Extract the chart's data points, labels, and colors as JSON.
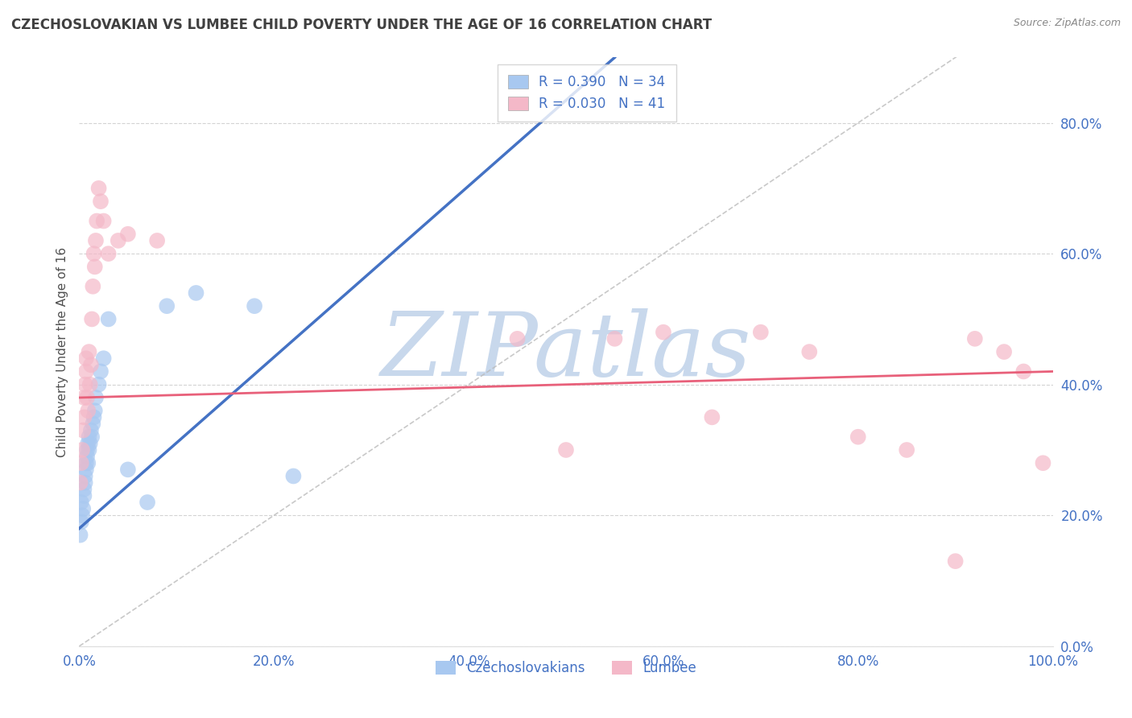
{
  "title": "CZECHOSLOVAKIAN VS LUMBEE CHILD POVERTY UNDER THE AGE OF 16 CORRELATION CHART",
  "source": "Source: ZipAtlas.com",
  "ylabel": "Child Poverty Under the Age of 16",
  "legend_labels": [
    "Czechoslovakians",
    "Lumbee"
  ],
  "legend_r": [
    "R = 0.390",
    "R = 0.030"
  ],
  "legend_n": [
    "N = 34",
    "N = 41"
  ],
  "blue_color": "#A8C8F0",
  "pink_color": "#F4B8C8",
  "blue_line_color": "#4472C4",
  "pink_line_color": "#E8607A",
  "watermark": "ZIPatlas",
  "watermark_color": "#C8D8EC",
  "background_color": "#FFFFFF",
  "grid_color": "#C8C8C8",
  "title_color": "#404040",
  "axis_label_color": "#505050",
  "tick_color": "#4472C4",
  "xlim": [
    0.0,
    1.0
  ],
  "ylim": [
    0.0,
    0.9
  ],
  "czech_x": [
    0.001,
    0.002,
    0.002,
    0.003,
    0.004,
    0.005,
    0.005,
    0.006,
    0.006,
    0.007,
    0.007,
    0.008,
    0.008,
    0.009,
    0.009,
    0.01,
    0.01,
    0.011,
    0.012,
    0.013,
    0.014,
    0.015,
    0.016,
    0.017,
    0.02,
    0.022,
    0.025,
    0.03,
    0.05,
    0.07,
    0.09,
    0.12,
    0.18,
    0.22
  ],
  "czech_y": [
    0.17,
    0.19,
    0.22,
    0.2,
    0.21,
    0.23,
    0.24,
    0.25,
    0.26,
    0.27,
    0.28,
    0.29,
    0.3,
    0.28,
    0.31,
    0.3,
    0.32,
    0.31,
    0.33,
    0.32,
    0.34,
    0.35,
    0.36,
    0.38,
    0.4,
    0.42,
    0.44,
    0.5,
    0.27,
    0.22,
    0.52,
    0.54,
    0.52,
    0.26
  ],
  "lumbee_x": [
    0.001,
    0.002,
    0.003,
    0.004,
    0.005,
    0.005,
    0.006,
    0.007,
    0.007,
    0.008,
    0.009,
    0.01,
    0.011,
    0.012,
    0.013,
    0.014,
    0.015,
    0.016,
    0.017,
    0.018,
    0.02,
    0.022,
    0.025,
    0.03,
    0.04,
    0.05,
    0.08,
    0.45,
    0.5,
    0.55,
    0.6,
    0.65,
    0.7,
    0.75,
    0.8,
    0.85,
    0.9,
    0.92,
    0.95,
    0.97,
    0.99
  ],
  "lumbee_y": [
    0.25,
    0.28,
    0.3,
    0.33,
    0.35,
    0.38,
    0.4,
    0.42,
    0.44,
    0.38,
    0.36,
    0.45,
    0.4,
    0.43,
    0.5,
    0.55,
    0.6,
    0.58,
    0.62,
    0.65,
    0.7,
    0.68,
    0.65,
    0.6,
    0.62,
    0.63,
    0.62,
    0.47,
    0.3,
    0.47,
    0.48,
    0.35,
    0.48,
    0.45,
    0.32,
    0.3,
    0.13,
    0.47,
    0.45,
    0.42,
    0.28
  ],
  "czech_trend_x": [
    0.0,
    1.0
  ],
  "czech_trend_y_start": 0.18,
  "czech_trend_y_end": 0.9,
  "lumbee_trend_x": [
    0.0,
    1.0
  ],
  "lumbee_trend_y_start": 0.38,
  "lumbee_trend_y_end": 0.42
}
